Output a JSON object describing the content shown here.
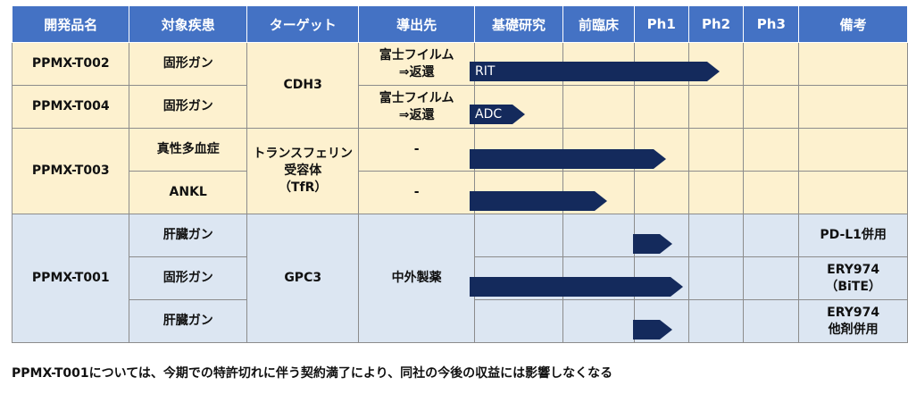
{
  "header": [
    "開発品名",
    "対象疾患",
    "ターゲット",
    "導出先",
    "基礎研究",
    "前臨床",
    "Ph1",
    "Ph2",
    "Ph3",
    "備考"
  ],
  "rows": {
    "t002": {
      "product": "PPMX-T002",
      "disease": "固形ガン",
      "target": "CDH3",
      "partner": "富士フイルム\n⇒返還",
      "bar_label": "RIT",
      "note": ""
    },
    "t004": {
      "product": "PPMX-T004",
      "disease": "固形ガン",
      "partner": "富士フイルム\n⇒返還",
      "bar_label": "ADC",
      "note": ""
    },
    "t003a": {
      "product": "PPMX-T003",
      "disease": "真性多血症",
      "target": "トランスフェリン\n受容体\n（TfR）",
      "partner": "-",
      "note": ""
    },
    "t003b": {
      "disease": "ANKL",
      "partner": "-",
      "note": ""
    },
    "t001a": {
      "product": "PPMX-T001",
      "disease": "肝臓ガン",
      "target": "GPC3",
      "partner": "中外製薬",
      "note": "PD-L1併用"
    },
    "t001b": {
      "disease": "固形ガン",
      "note": "ERY974\n（BiTE）"
    },
    "t001c": {
      "disease": "肝臓ガン",
      "note": "ERY974\n他剤併用"
    }
  },
  "footnote": "PPMX-T001については、今期での特許切れに伴う契約満了により、同社の今後の収益には影響しなくなる",
  "colors": {
    "header": "#4472c4",
    "yellow": "#fdf1cf",
    "blue": "#dce6f2",
    "bar": "#142a5c"
  }
}
